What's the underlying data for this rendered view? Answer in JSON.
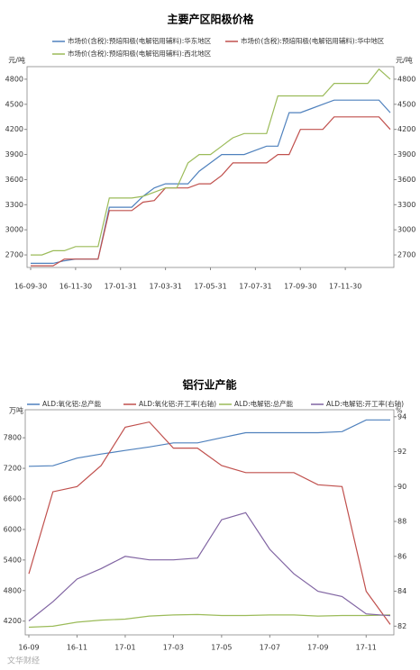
{
  "chart_data": [
    {
      "type": "line",
      "title": "主要产区阳极价格",
      "y_unit": "元/吨",
      "y2_unit": "元/吨",
      "categories": [
        "16-09-30",
        null,
        null,
        null,
        "16-11-30",
        null,
        null,
        null,
        "17-01-31",
        null,
        null,
        null,
        "17-03-31",
        null,
        null,
        null,
        "17-05-31",
        null,
        null,
        null,
        "17-07-31",
        null,
        null,
        null,
        "17-09-30",
        null,
        null,
        null,
        "17-11-30",
        null,
        null,
        null,
        null
      ],
      "series": [
        {
          "name": "市场价(含税):预焙阳极(电解铝用辅料):华东地区",
          "color": "#4f81bd",
          "values": [
            2600,
            2600,
            2600,
            2630,
            2650,
            2650,
            2650,
            3270,
            3270,
            3270,
            3400,
            3500,
            3550,
            3550,
            3550,
            3700,
            3800,
            3900,
            3900,
            3900,
            3950,
            4000,
            4000,
            4400,
            4400,
            4450,
            4500,
            4550,
            4550,
            4550,
            4550,
            4550,
            4400
          ]
        },
        {
          "name": "市场价(含税):预焙阳极(电解铝用辅料):华中地区",
          "color": "#c0504d",
          "values": [
            2570,
            2570,
            2570,
            2650,
            2650,
            2650,
            2650,
            3230,
            3230,
            3230,
            3330,
            3350,
            3500,
            3500,
            3500,
            3550,
            3550,
            3650,
            3800,
            3800,
            3800,
            3800,
            3900,
            3900,
            4200,
            4200,
            4200,
            4350,
            4350,
            4350,
            4350,
            4350,
            4200
          ]
        },
        {
          "name": "市场价(含税):预焙阳极(电解铝用辅料):西北地区",
          "color": "#9bbb59",
          "values": [
            2700,
            2700,
            2750,
            2750,
            2800,
            2800,
            2800,
            3380,
            3380,
            3380,
            3400,
            3450,
            3500,
            3500,
            3800,
            3900,
            3900,
            4000,
            4100,
            4150,
            4150,
            4150,
            4600,
            4600,
            4600,
            4600,
            4600,
            4750,
            4750,
            4750,
            4750,
            4920,
            4800
          ]
        }
      ],
      "ylim": [
        2550,
        4950
      ],
      "yticks": [
        2700,
        3000,
        3300,
        3600,
        3900,
        4200,
        4500,
        4800
      ],
      "y2lim": [
        2550,
        4950
      ],
      "y2ticks": [
        2700,
        3000,
        3300,
        3600,
        3900,
        4200,
        4500,
        4800
      ],
      "grid": false
    },
    {
      "type": "line",
      "title": "铝行业产能",
      "y_unit": "万吨",
      "y2_unit": "%",
      "categories": [
        "16-09",
        null,
        "16-11",
        null,
        "17-01",
        null,
        "17-03",
        null,
        "17-05",
        null,
        "17-07",
        null,
        "17-09",
        null,
        "17-11",
        null
      ],
      "series": [
        {
          "name": "ALD:氧化铝:总产能",
          "color": "#4f81bd",
          "values": [
            7240,
            7250,
            7400,
            7480,
            7550,
            7620,
            7700,
            7700,
            7800,
            7900,
            7900,
            7900,
            7900,
            7920,
            8150,
            8150
          ]
        },
        {
          "name": "ALD:氧化铝:开工率(右轴)",
          "color": "#c0504d",
          "axis": "y2",
          "values": [
            85.0,
            89.7,
            90.0,
            91.2,
            93.4,
            93.7,
            92.2,
            92.2,
            91.2,
            90.8,
            90.8,
            90.8,
            90.1,
            90.0,
            84.0,
            82.1
          ]
        },
        {
          "name": "ALD:电解铝:总产能",
          "color": "#9bbb59",
          "values": [
            4080,
            4100,
            4180,
            4220,
            4240,
            4300,
            4320,
            4330,
            4310,
            4310,
            4320,
            4320,
            4300,
            4310,
            4310,
            4320
          ]
        },
        {
          "name": "ALD:电解铝:开工率(右轴)",
          "color": "#8064a2",
          "axis": "y2",
          "values": [
            82.3,
            83.4,
            84.7,
            85.3,
            86.0,
            85.8,
            85.8,
            85.9,
            88.1,
            88.5,
            86.4,
            85.0,
            84.0,
            83.7,
            82.7,
            82.6
          ]
        }
      ],
      "ylim": [
        3930,
        8350
      ],
      "yticks": [
        4200,
        4800,
        5400,
        6000,
        6600,
        7200,
        7800
      ],
      "y2lim": [
        81.5,
        94.4
      ],
      "y2ticks": [
        82,
        84,
        86,
        88,
        90,
        92,
        94
      ],
      "grid": false,
      "watermark": "文华财经"
    }
  ]
}
